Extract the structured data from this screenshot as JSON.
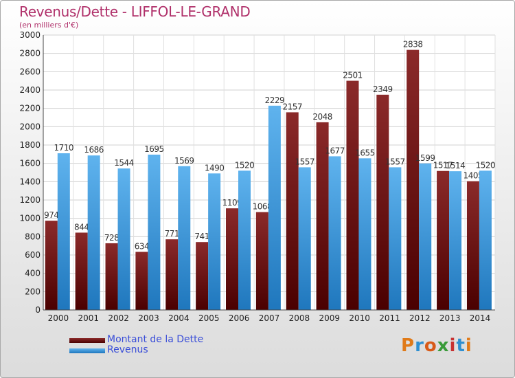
{
  "title": "Revenus/Dette - LIFFOL-LE-GRAND",
  "subtitle": "(en milliers d'€)",
  "brand": "Proxiti",
  "colors": {
    "dette_top": "#8b2a2a",
    "dette_bottom": "#4a0000",
    "revenus_top": "#5fb3ee",
    "revenus_bottom": "#1f77bd",
    "brand_letters": [
      "#e07a18",
      "#2e8fd1",
      "#d85a18",
      "#3a9b3a",
      "#c83232",
      "#2e8fd1",
      "#e07a18"
    ]
  },
  "chart_data": {
    "type": "bar",
    "categories": [
      "2000",
      "2001",
      "2002",
      "2003",
      "2004",
      "2005",
      "2006",
      "2007",
      "2008",
      "2009",
      "2010",
      "2011",
      "2012",
      "2013",
      "2014"
    ],
    "series": [
      {
        "name": "Montant de la Dette",
        "values": [
          974,
          844,
          728,
          634,
          771,
          741,
          1109,
          1068,
          2157,
          2048,
          2501,
          2349,
          2838,
          1517,
          1405
        ]
      },
      {
        "name": "Revenus",
        "values": [
          1710,
          1686,
          1544,
          1695,
          1569,
          1490,
          1520,
          2229,
          1557,
          1677,
          1655,
          1557,
          1599,
          1514,
          1520
        ]
      }
    ],
    "data_labels": [
      [
        "974",
        "844",
        "728",
        "634",
        "771",
        "741",
        "1109",
        "1068",
        "2157",
        "2048",
        "2501",
        "2349",
        "2838",
        "1517",
        "1405"
      ],
      [
        "1710",
        "1686",
        "1544",
        "1695",
        "1569",
        "1490",
        "1520",
        "2229",
        "1557",
        "1677",
        "1655",
        "1557",
        "1599",
        "1514",
        "1520"
      ]
    ],
    "ylim": [
      0,
      3000
    ],
    "yticks": [
      0,
      200,
      400,
      600,
      800,
      1000,
      1200,
      1400,
      1600,
      1800,
      2000,
      2200,
      2400,
      2600,
      2800,
      3000
    ],
    "grid": true,
    "legend_position": "bottom-left"
  }
}
